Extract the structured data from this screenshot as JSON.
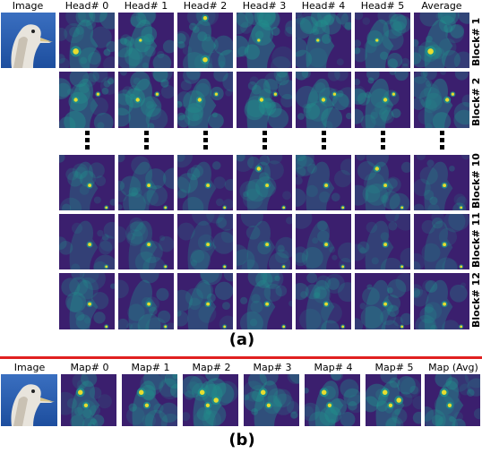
{
  "part_a": {
    "image_label": "Image",
    "head_labels": [
      "Head# 0",
      "Head# 1",
      "Head# 2",
      "Head# 3",
      "Head# 4",
      "Head# 5",
      "Average"
    ],
    "block_labels": [
      "Block# 1",
      "Block# 2",
      "Block# 10",
      "Block# 11",
      "Block# 12"
    ],
    "caption": "(a)"
  },
  "part_b": {
    "image_label": "Image",
    "map_labels": [
      "Map# 0",
      "Map# 1",
      "Map# 2",
      "Map# 3",
      "Map# 4",
      "Map# 5",
      "Map (Avg)"
    ],
    "caption": "(b)"
  },
  "colors": {
    "background": "#ffffff",
    "separator": "#e02020",
    "heatmap_low": "#3b1f6e",
    "heatmap_mid": "#21918c",
    "heatmap_high": "#fde725"
  }
}
